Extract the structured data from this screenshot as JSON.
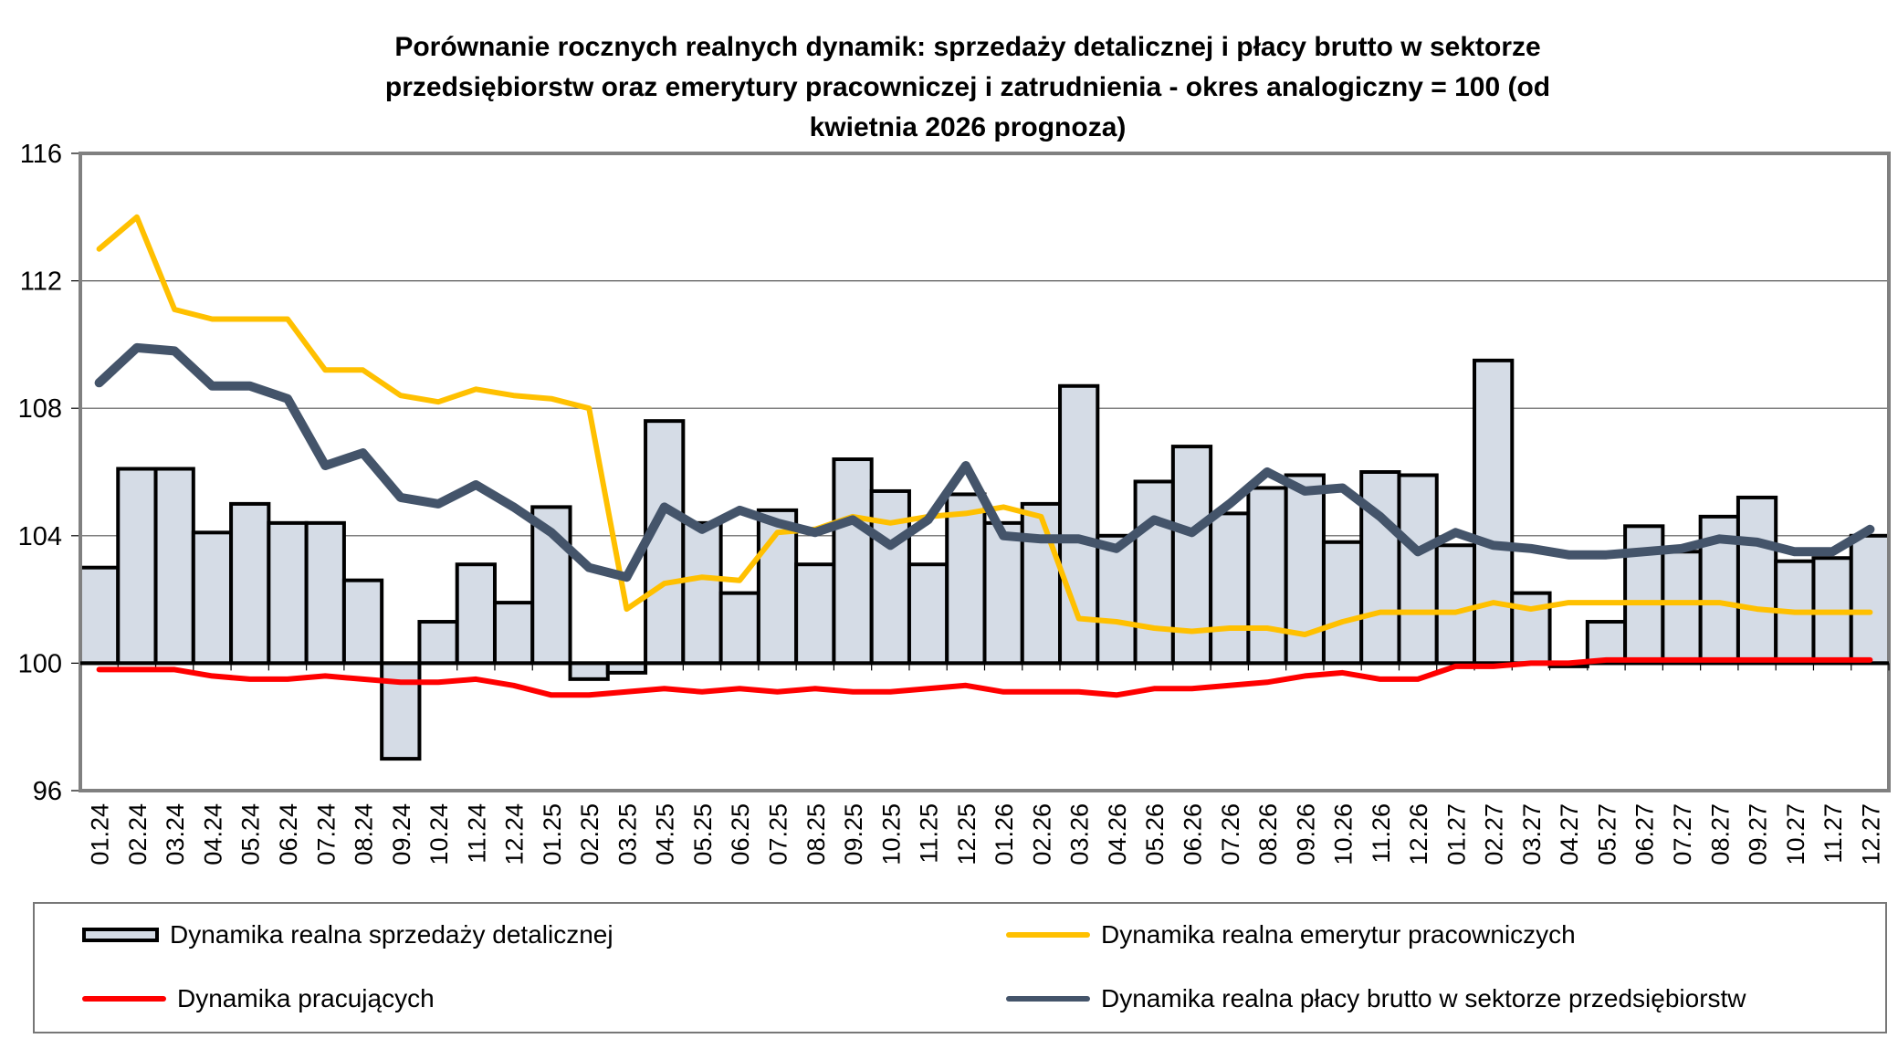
{
  "chart_data": {
    "type": "bar+line",
    "title": "Porównanie rocznych realnych dynamik: sprzedaży detalicznej i płacy brutto w sektorze przedsiębiorstw oraz emerytury pracowniczej i zatrudnienia - okres analogiczny = 100 (od kwietnia 2026 prognoza)",
    "title_lines": [
      "Porównanie rocznych realnych dynamik: sprzedaży detalicznej i płacy brutto w sektorze",
      "przedsiębiorstw oraz emerytury pracowniczej i zatrudnienia - okres analogiczny = 100 (od",
      "kwietnia 2026 prognoza)"
    ],
    "xlabel": "",
    "ylabel": "",
    "ylim": [
      96,
      116
    ],
    "yticks": [
      "96",
      "100",
      "104",
      "108",
      "112",
      "116"
    ],
    "baseline": 100,
    "grid": true,
    "legend_position": "bottom",
    "categories": [
      "01.24",
      "02.24",
      "03.24",
      "04.24",
      "05.24",
      "06.24",
      "07.24",
      "08.24",
      "09.24",
      "10.24",
      "11.24",
      "12.24",
      "01.25",
      "02.25",
      "03.25",
      "04.25",
      "05.25",
      "06.25",
      "07.25",
      "08.25",
      "09.25",
      "10.25",
      "11.25",
      "12.25",
      "01.26",
      "02.26",
      "03.26",
      "04.26",
      "05.26",
      "06.26",
      "07.26",
      "08.26",
      "09.26",
      "10.26",
      "11.26",
      "12.26",
      "01.27",
      "02.27",
      "03.27",
      "04.27",
      "05.27",
      "06.27",
      "07.27",
      "08.27",
      "09.27",
      "10.27",
      "11.27",
      "12.27"
    ],
    "series": [
      {
        "name": "Dynamika realna sprzedaży detalicznej",
        "kind": "bar",
        "color": "#d5dce6",
        "values": [
          103.0,
          106.1,
          106.1,
          104.1,
          105.0,
          104.4,
          104.4,
          102.6,
          97.0,
          101.3,
          103.1,
          101.9,
          104.9,
          99.5,
          99.7,
          107.6,
          104.4,
          102.2,
          104.8,
          103.1,
          106.4,
          105.4,
          103.1,
          105.3,
          104.4,
          105.0,
          108.7,
          104.0,
          105.7,
          106.8,
          104.7,
          105.5,
          105.9,
          103.8,
          106.0,
          105.9,
          103.7,
          109.5,
          102.2,
          99.9,
          101.3,
          104.3,
          103.5,
          104.6,
          105.2,
          103.2,
          103.3,
          104.0
        ]
      },
      {
        "name": "Dynamika realna emerytur pracowniczych",
        "kind": "line",
        "color": "#ffc000",
        "values": [
          113.0,
          114.0,
          111.1,
          110.8,
          110.8,
          110.8,
          109.2,
          109.2,
          108.4,
          108.2,
          108.6,
          108.4,
          108.3,
          108.0,
          101.7,
          102.5,
          102.7,
          102.6,
          104.1,
          104.2,
          104.6,
          104.4,
          104.6,
          104.7,
          104.9,
          104.6,
          101.4,
          101.3,
          101.1,
          101.0,
          101.1,
          101.1,
          100.9,
          101.3,
          101.6,
          101.6,
          101.6,
          101.9,
          101.7,
          101.9,
          101.9,
          101.9,
          101.9,
          101.9,
          101.7,
          101.6,
          101.6,
          101.6
        ]
      },
      {
        "name": "Dynamika pracujących",
        "kind": "line",
        "color": "#ff0000",
        "values": [
          99.8,
          99.8,
          99.8,
          99.6,
          99.5,
          99.5,
          99.6,
          99.5,
          99.4,
          99.4,
          99.5,
          99.3,
          99.0,
          99.0,
          99.1,
          99.2,
          99.1,
          99.2,
          99.1,
          99.2,
          99.1,
          99.1,
          99.2,
          99.3,
          99.1,
          99.1,
          99.1,
          99.0,
          99.2,
          99.2,
          99.3,
          99.4,
          99.6,
          99.7,
          99.5,
          99.5,
          99.9,
          99.9,
          100.0,
          100.0,
          100.1,
          100.1,
          100.1,
          100.1,
          100.1,
          100.1,
          100.1,
          100.1
        ]
      },
      {
        "name": "Dynamika realna płacy brutto w sektorze przedsiębiorstw",
        "kind": "line",
        "color": "#44546a",
        "values": [
          108.8,
          109.9,
          109.8,
          108.7,
          108.7,
          108.3,
          106.2,
          106.6,
          105.2,
          105.0,
          105.6,
          104.9,
          104.1,
          103.0,
          102.7,
          104.9,
          104.2,
          104.8,
          104.4,
          104.1,
          104.5,
          103.7,
          104.5,
          106.2,
          104.0,
          103.9,
          103.9,
          103.6,
          104.5,
          104.1,
          105.0,
          106.0,
          105.4,
          105.5,
          104.6,
          103.5,
          104.1,
          103.7,
          103.6,
          103.4,
          103.4,
          103.5,
          103.6,
          103.9,
          103.8,
          103.5,
          103.5,
          104.2
        ]
      }
    ]
  }
}
